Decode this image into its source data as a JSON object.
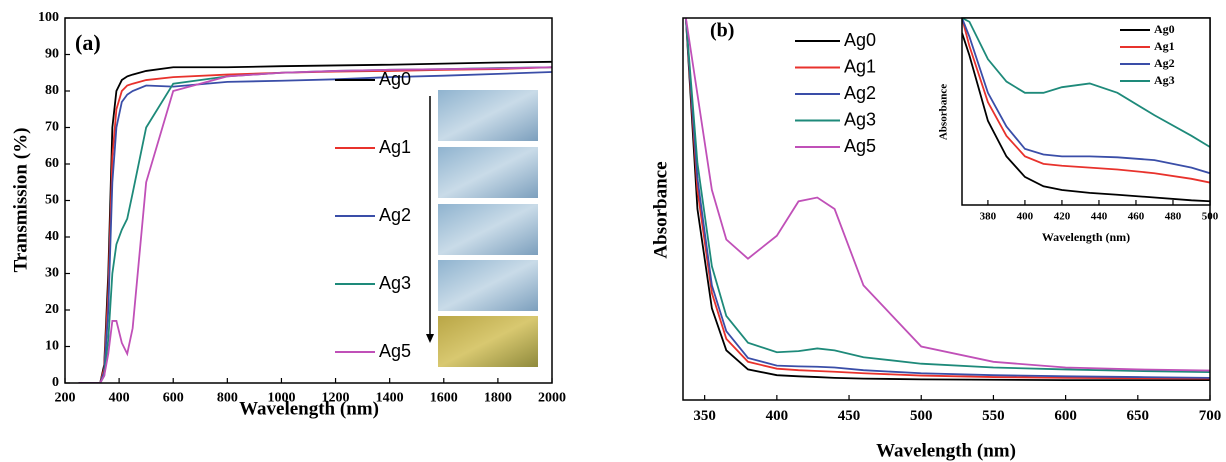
{
  "chart_data": [
    {
      "type": "line",
      "title": "(a)",
      "xlabel": "Wavelength (nm)",
      "ylabel": "Transmission (%)",
      "x": [
        250,
        330,
        345,
        360,
        375,
        390,
        410,
        430,
        450,
        500,
        600,
        800,
        1000,
        1200,
        1400,
        1600,
        1800,
        2000
      ],
      "series": [
        {
          "name": "Ag0",
          "color": "#000000",
          "values": [
            0,
            0,
            5,
            30,
            70,
            80,
            83,
            84,
            84.5,
            85.5,
            86.5,
            86.5,
            86.8,
            87,
            87.2,
            87.5,
            87.8,
            88
          ]
        },
        {
          "name": "Ag1",
          "color": "#e8322c",
          "values": [
            0,
            0,
            4,
            25,
            62,
            75,
            80,
            81.5,
            82,
            83,
            83.8,
            84.5,
            85,
            85.3,
            85.5,
            85.8,
            86,
            86.5
          ]
        },
        {
          "name": "Ag2",
          "color": "#3a4ea8",
          "values": [
            0,
            0,
            3,
            20,
            55,
            70,
            77,
            79,
            80,
            81.5,
            81.2,
            82.5,
            82.8,
            83.2,
            83.8,
            84.2,
            84.7,
            85.2
          ]
        },
        {
          "name": "Ag3",
          "color": "#1e8a7a",
          "values": [
            0,
            0,
            2,
            12,
            30,
            38,
            42,
            45,
            52,
            70,
            82,
            84,
            85,
            85.5,
            85.8,
            86,
            86.3,
            86.5
          ]
        },
        {
          "name": "Ag5",
          "color": "#c050b8",
          "values": [
            0,
            0,
            2,
            8,
            17,
            17,
            11,
            8,
            15,
            55,
            80,
            84,
            85,
            85.5,
            85.8,
            86,
            86.2,
            86.5
          ]
        }
      ],
      "xlim": [
        200,
        2000
      ],
      "ylim": [
        0,
        100
      ],
      "xticks": [
        200,
        400,
        600,
        800,
        1000,
        1200,
        1400,
        1600,
        1800,
        2000
      ],
      "yticks": [
        0,
        10,
        20,
        30,
        40,
        50,
        60,
        70,
        80,
        90,
        100
      ]
    },
    {
      "type": "line",
      "title": "(b)",
      "xlabel": "Wavelength (nm)",
      "ylabel": "Absorbance",
      "x": [
        337,
        345,
        355,
        365,
        380,
        400,
        415,
        428,
        440,
        460,
        500,
        550,
        600,
        650,
        700
      ],
      "series": [
        {
          "name": "Ag0",
          "color": "#000000",
          "values": [
            1.0,
            0.5,
            0.24,
            0.13,
            0.08,
            0.065,
            0.062,
            0.06,
            0.058,
            0.056,
            0.054,
            0.053,
            0.052,
            0.052,
            0.052
          ]
        },
        {
          "name": "Ag1",
          "color": "#e8322c",
          "values": [
            1.0,
            0.55,
            0.28,
            0.16,
            0.1,
            0.082,
            0.078,
            0.076,
            0.074,
            0.07,
            0.064,
            0.06,
            0.058,
            0.057,
            0.056
          ]
        },
        {
          "name": "Ag2",
          "color": "#3a4ea8",
          "values": [
            1.0,
            0.58,
            0.3,
            0.18,
            0.11,
            0.09,
            0.088,
            0.087,
            0.085,
            0.078,
            0.07,
            0.065,
            0.062,
            0.06,
            0.058
          ]
        },
        {
          "name": "Ag3",
          "color": "#1e8a7a",
          "values": [
            1.0,
            0.62,
            0.35,
            0.22,
            0.15,
            0.125,
            0.128,
            0.135,
            0.13,
            0.112,
            0.095,
            0.085,
            0.08,
            0.076,
            0.073
          ]
        },
        {
          "name": "Ag5",
          "color": "#c050b8",
          "values": [
            1.0,
            0.8,
            0.55,
            0.42,
            0.37,
            0.43,
            0.52,
            0.53,
            0.5,
            0.3,
            0.14,
            0.1,
            0.085,
            0.08,
            0.077
          ]
        }
      ],
      "xlim": [
        335,
        700
      ],
      "ylim": [
        0,
        1
      ],
      "xticks": [
        350,
        400,
        450,
        500,
        550,
        600,
        650,
        700
      ]
    },
    {
      "type": "line",
      "xlabel": "Wavelength (nm)",
      "ylabel": "Absorbance",
      "x": [
        366,
        370,
        380,
        390,
        400,
        410,
        420,
        435,
        450,
        470,
        490,
        500
      ],
      "series": [
        {
          "name": "Ag0",
          "color": "#000000",
          "values": [
            0.92,
            0.8,
            0.45,
            0.26,
            0.15,
            0.1,
            0.08,
            0.065,
            0.055,
            0.04,
            0.025,
            0.02
          ]
        },
        {
          "name": "Ag1",
          "color": "#e8322c",
          "values": [
            1.0,
            0.85,
            0.55,
            0.37,
            0.26,
            0.22,
            0.21,
            0.2,
            0.19,
            0.17,
            0.14,
            0.12
          ]
        },
        {
          "name": "Ag2",
          "color": "#3a4ea8",
          "values": [
            1.0,
            0.9,
            0.6,
            0.42,
            0.3,
            0.27,
            0.26,
            0.26,
            0.255,
            0.24,
            0.2,
            0.17
          ]
        },
        {
          "name": "Ag3",
          "color": "#1e8a7a",
          "values": [
            1.0,
            0.98,
            0.78,
            0.66,
            0.6,
            0.6,
            0.63,
            0.65,
            0.6,
            0.48,
            0.37,
            0.31
          ]
        }
      ],
      "xlim": [
        366,
        500
      ],
      "ylim": [
        0,
        1
      ],
      "xticks": [
        380,
        400,
        420,
        440,
        460,
        480,
        500
      ]
    }
  ]
}
